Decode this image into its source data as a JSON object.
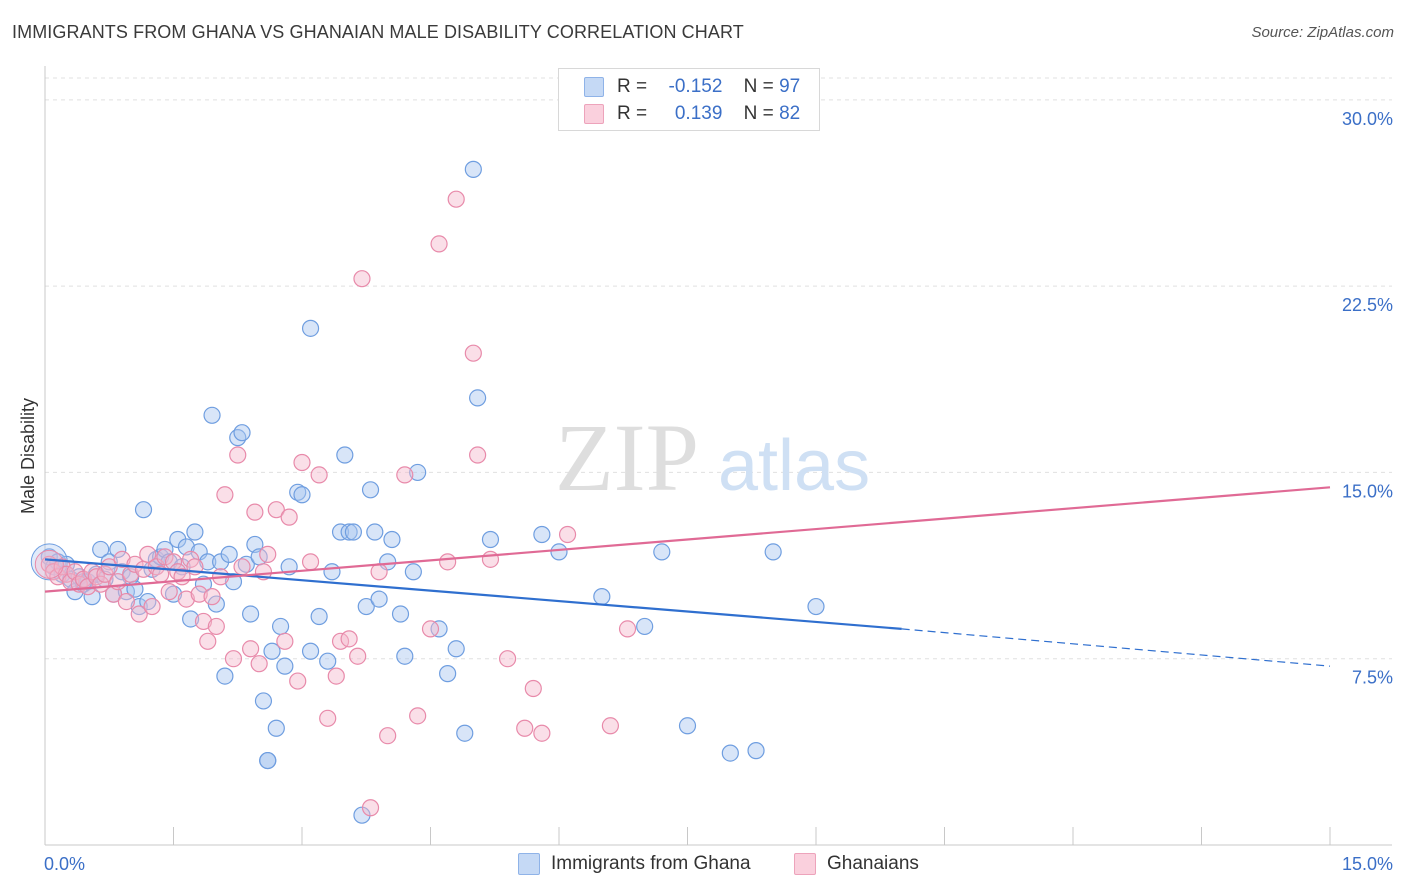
{
  "header": {
    "title": "IMMIGRANTS FROM GHANA VS GHANAIAN MALE DISABILITY CORRELATION CHART",
    "source": "Source: ZipAtlas.com"
  },
  "watermark": {
    "zip": "ZIP",
    "atlas": "atlas"
  },
  "legend_top": {
    "rows": [
      {
        "r_label": "R =",
        "r_value": "-0.152",
        "n_label": "N =",
        "n_value": "97",
        "color": "#a9c6f0"
      },
      {
        "r_label": "R =",
        "r_value": "0.139",
        "n_label": "N =",
        "n_value": "82",
        "color": "#f5b8cc"
      }
    ]
  },
  "legend_bottom": {
    "items": [
      {
        "label": "Immigrants from Ghana",
        "color": "#a9c6f0"
      },
      {
        "label": "Ghanaians",
        "color": "#f5b8cc"
      }
    ]
  },
  "colors": {
    "blue_fill": "#a9c6f0",
    "blue_stroke": "#6f9ee0",
    "blue_line": "#2f6fcf",
    "pink_fill": "#f5b8cc",
    "pink_stroke": "#e88aaa",
    "pink_line": "#e06a95",
    "tick_text": "#3b6fc7",
    "grid": "#e0e0e0"
  },
  "chart_data": {
    "type": "scatter",
    "title": "IMMIGRANTS FROM GHANA VS GHANAIAN MALE DISABILITY CORRELATION CHART",
    "xlabel": "",
    "ylabel": "Male Disability",
    "xlim": [
      0,
      15
    ],
    "ylim": [
      0,
      31
    ],
    "x_tick_labels": [
      "0.0%",
      "15.0%"
    ],
    "y_ticks": [
      7.5,
      15.0,
      22.5,
      30.0
    ],
    "y_tick_labels": [
      "7.5%",
      "15.0%",
      "22.5%",
      "30.0%"
    ],
    "grid": "horizontal dashed",
    "legend": "top-center",
    "series": [
      {
        "name": "Immigrants from Ghana",
        "r": -0.152,
        "n": 97,
        "trend": {
          "x_start": 0,
          "y_start": 11.5,
          "x_solid_end": 10,
          "y_solid_end": 8.7,
          "x_end": 15,
          "y_end": 7.2
        },
        "points": [
          [
            0.05,
            11.6
          ],
          [
            0.1,
            11.2
          ],
          [
            0.15,
            11.4
          ],
          [
            0.2,
            10.9
          ],
          [
            0.25,
            11.3
          ],
          [
            0.3,
            10.7
          ],
          [
            0.35,
            10.2
          ],
          [
            0.4,
            10.8
          ],
          [
            0.45,
            10.5
          ],
          [
            0.5,
            10.6
          ],
          [
            0.55,
            10.0
          ],
          [
            0.6,
            10.9
          ],
          [
            0.65,
            11.9
          ],
          [
            0.7,
            10.7
          ],
          [
            0.75,
            11.4
          ],
          [
            0.8,
            10.1
          ],
          [
            0.85,
            11.9
          ],
          [
            0.9,
            11.0
          ],
          [
            0.95,
            10.2
          ],
          [
            1.0,
            10.8
          ],
          [
            1.05,
            10.3
          ],
          [
            1.1,
            9.6
          ],
          [
            1.15,
            13.5
          ],
          [
            1.2,
            9.8
          ],
          [
            1.25,
            11.1
          ],
          [
            1.3,
            11.5
          ],
          [
            1.35,
            11.6
          ],
          [
            1.4,
            11.9
          ],
          [
            1.45,
            11.4
          ],
          [
            1.5,
            10.1
          ],
          [
            1.55,
            12.3
          ],
          [
            1.6,
            11.2
          ],
          [
            1.65,
            12.0
          ],
          [
            1.7,
            9.1
          ],
          [
            1.75,
            12.6
          ],
          [
            1.8,
            11.8
          ],
          [
            1.85,
            10.5
          ],
          [
            1.9,
            11.4
          ],
          [
            1.95,
            17.3
          ],
          [
            2.0,
            9.7
          ],
          [
            2.05,
            11.4
          ],
          [
            2.1,
            6.8
          ],
          [
            2.15,
            11.7
          ],
          [
            2.2,
            10.6
          ],
          [
            2.25,
            16.4
          ],
          [
            2.3,
            16.6
          ],
          [
            2.35,
            11.3
          ],
          [
            2.4,
            9.3
          ],
          [
            2.45,
            12.1
          ],
          [
            2.5,
            11.6
          ],
          [
            2.55,
            5.8
          ],
          [
            2.6,
            3.4
          ],
          [
            2.65,
            7.8
          ],
          [
            2.7,
            4.7
          ],
          [
            2.75,
            8.8
          ],
          [
            2.8,
            7.2
          ],
          [
            2.85,
            11.2
          ],
          [
            2.95,
            14.2
          ],
          [
            3.0,
            14.1
          ],
          [
            3.1,
            20.8
          ],
          [
            3.2,
            9.2
          ],
          [
            3.3,
            7.4
          ],
          [
            3.35,
            11.0
          ],
          [
            3.45,
            12.6
          ],
          [
            3.5,
            15.7
          ],
          [
            3.55,
            12.6
          ],
          [
            3.6,
            12.6
          ],
          [
            3.7,
            1.2
          ],
          [
            3.75,
            9.6
          ],
          [
            3.8,
            14.3
          ],
          [
            3.85,
            12.6
          ],
          [
            3.9,
            9.9
          ],
          [
            4.0,
            11.4
          ],
          [
            4.05,
            12.3
          ],
          [
            4.15,
            9.3
          ],
          [
            4.2,
            7.6
          ],
          [
            4.3,
            11.0
          ],
          [
            4.35,
            15.0
          ],
          [
            4.6,
            8.7
          ],
          [
            4.7,
            6.9
          ],
          [
            4.8,
            7.9
          ],
          [
            4.9,
            4.5
          ],
          [
            5.0,
            27.2
          ],
          [
            5.05,
            18.0
          ],
          [
            5.2,
            12.3
          ],
          [
            5.8,
            12.5
          ],
          [
            6.0,
            11.8
          ],
          [
            6.5,
            10.0
          ],
          [
            7.0,
            8.8
          ],
          [
            7.2,
            11.8
          ],
          [
            7.5,
            4.8
          ],
          [
            8.0,
            3.7
          ],
          [
            8.3,
            3.8
          ],
          [
            9.0,
            9.6
          ],
          [
            0.45,
            10.6
          ],
          [
            2.6,
            3.4
          ],
          [
            3.1,
            7.8
          ],
          [
            8.5,
            11.8
          ]
        ]
      },
      {
        "name": "Ghanaians",
        "r": 0.139,
        "n": 82,
        "trend": {
          "x_start": 0,
          "y_start": 10.2,
          "x_end": 15,
          "y_end": 14.4
        },
        "points": [
          [
            0.05,
            11.3
          ],
          [
            0.1,
            11.0
          ],
          [
            0.15,
            10.8
          ],
          [
            0.2,
            11.2
          ],
          [
            0.25,
            10.9
          ],
          [
            0.3,
            10.6
          ],
          [
            0.35,
            11.0
          ],
          [
            0.4,
            10.5
          ],
          [
            0.45,
            10.7
          ],
          [
            0.5,
            10.4
          ],
          [
            0.55,
            11.0
          ],
          [
            0.6,
            10.8
          ],
          [
            0.65,
            10.5
          ],
          [
            0.7,
            10.9
          ],
          [
            0.75,
            11.2
          ],
          [
            0.8,
            10.1
          ],
          [
            0.85,
            10.6
          ],
          [
            0.9,
            11.5
          ],
          [
            0.95,
            9.8
          ],
          [
            1.0,
            10.9
          ],
          [
            1.05,
            11.3
          ],
          [
            1.1,
            9.3
          ],
          [
            1.15,
            11.1
          ],
          [
            1.2,
            11.7
          ],
          [
            1.25,
            9.6
          ],
          [
            1.3,
            11.2
          ],
          [
            1.35,
            10.9
          ],
          [
            1.4,
            11.6
          ],
          [
            1.45,
            10.2
          ],
          [
            1.5,
            11.4
          ],
          [
            1.55,
            11.0
          ],
          [
            1.6,
            10.8
          ],
          [
            1.65,
            9.9
          ],
          [
            1.7,
            11.5
          ],
          [
            1.75,
            11.2
          ],
          [
            1.8,
            10.1
          ],
          [
            1.85,
            9.0
          ],
          [
            1.9,
            8.2
          ],
          [
            1.95,
            10.0
          ],
          [
            2.0,
            8.8
          ],
          [
            2.05,
            10.8
          ],
          [
            2.1,
            14.1
          ],
          [
            2.2,
            7.5
          ],
          [
            2.25,
            15.7
          ],
          [
            2.3,
            11.2
          ],
          [
            2.4,
            7.9
          ],
          [
            2.45,
            13.4
          ],
          [
            2.5,
            7.3
          ],
          [
            2.55,
            11.0
          ],
          [
            2.6,
            11.7
          ],
          [
            2.7,
            13.5
          ],
          [
            2.8,
            8.2
          ],
          [
            2.85,
            13.2
          ],
          [
            2.95,
            6.6
          ],
          [
            3.0,
            15.4
          ],
          [
            3.1,
            11.4
          ],
          [
            3.2,
            14.9
          ],
          [
            3.3,
            5.1
          ],
          [
            3.4,
            6.8
          ],
          [
            3.45,
            8.2
          ],
          [
            3.55,
            8.3
          ],
          [
            3.65,
            7.6
          ],
          [
            3.7,
            22.8
          ],
          [
            3.8,
            1.5
          ],
          [
            3.9,
            11.0
          ],
          [
            4.0,
            4.4
          ],
          [
            4.2,
            14.9
          ],
          [
            4.35,
            5.2
          ],
          [
            4.5,
            8.7
          ],
          [
            4.6,
            24.2
          ],
          [
            4.7,
            11.4
          ],
          [
            4.8,
            26.0
          ],
          [
            5.0,
            19.8
          ],
          [
            5.05,
            15.7
          ],
          [
            5.2,
            11.5
          ],
          [
            5.4,
            7.5
          ],
          [
            5.6,
            4.7
          ],
          [
            5.7,
            6.3
          ],
          [
            5.8,
            4.5
          ],
          [
            6.1,
            12.5
          ],
          [
            6.6,
            4.8
          ],
          [
            6.8,
            8.7
          ]
        ]
      }
    ]
  }
}
